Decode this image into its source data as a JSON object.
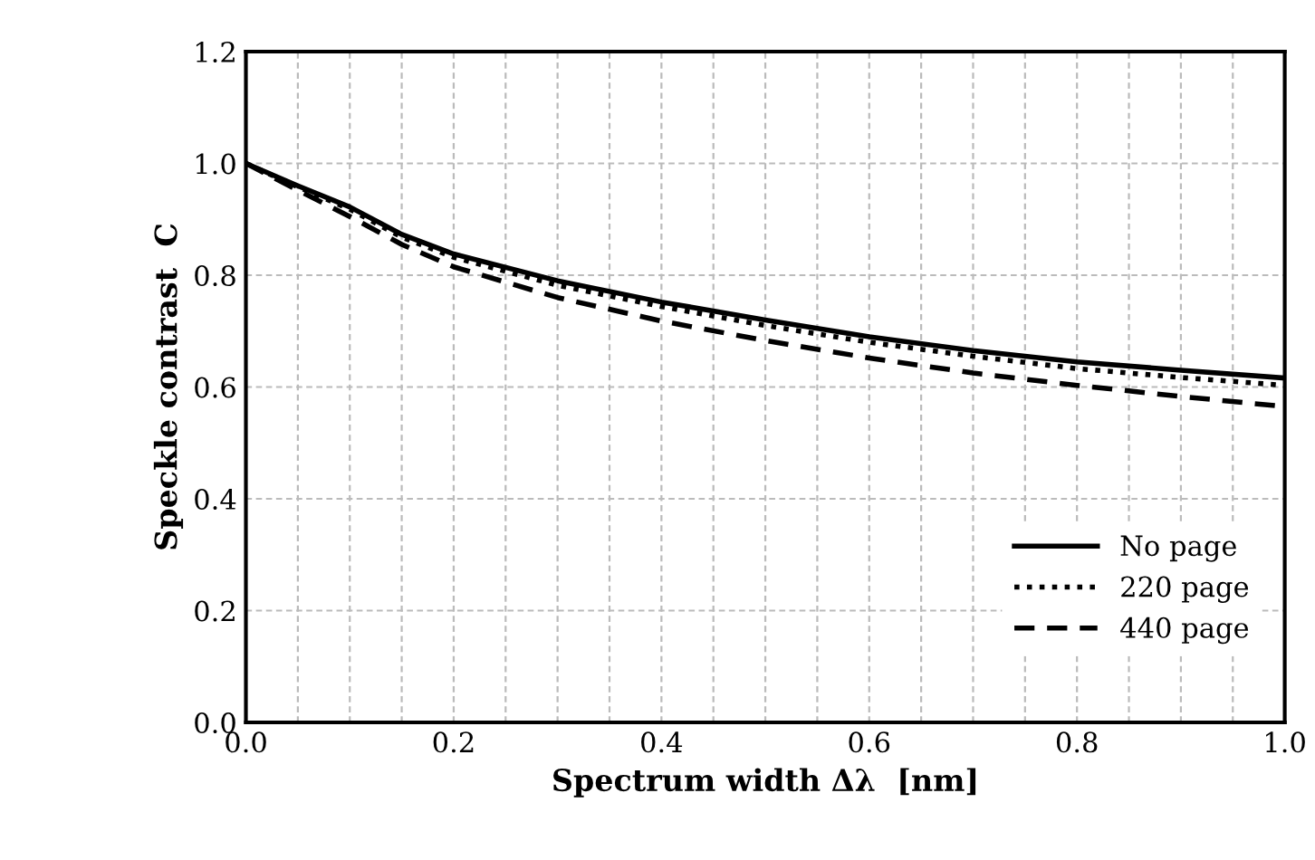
{
  "chart_data": {
    "type": "line",
    "xlabel": "Spectrum width Δλ  [nm]",
    "ylabel": "Speckle contrast  C",
    "x": [
      0,
      0.05,
      0.1,
      0.15,
      0.2,
      0.3,
      0.4,
      0.5,
      0.6,
      0.7,
      0.8,
      0.9,
      1.0
    ],
    "series": [
      {
        "name": "No page",
        "color": "#000000",
        "line_style": "solid",
        "values": [
          1.0,
          0.96,
          0.922,
          0.873,
          0.838,
          0.79,
          0.752,
          0.72,
          0.69,
          0.665,
          0.645,
          0.63,
          0.616
        ]
      },
      {
        "name": "220 page",
        "color": "#000000",
        "line_style": "dotted",
        "values": [
          1.0,
          0.958,
          0.918,
          0.868,
          0.832,
          0.782,
          0.744,
          0.71,
          0.68,
          0.655,
          0.633,
          0.617,
          0.603
        ]
      },
      {
        "name": "440 page",
        "color": "#000000",
        "line_style": "dashed",
        "values": [
          1.0,
          0.952,
          0.905,
          0.855,
          0.815,
          0.76,
          0.718,
          0.683,
          0.652,
          0.625,
          0.603,
          0.583,
          0.565
        ]
      }
    ],
    "xlim": [
      0,
      1.0
    ],
    "ylim": [
      0,
      1.2
    ],
    "xticks": [
      {
        "value": 0,
        "label": "0.0"
      },
      {
        "value": 0.05,
        "label": null
      },
      {
        "value": 0.1,
        "label": null
      },
      {
        "value": 0.15,
        "label": null
      },
      {
        "value": 0.2,
        "label": "0.2"
      },
      {
        "value": 0.25,
        "label": null
      },
      {
        "value": 0.3,
        "label": null
      },
      {
        "value": 0.35,
        "label": null
      },
      {
        "value": 0.4,
        "label": "0.4"
      },
      {
        "value": 0.45,
        "label": null
      },
      {
        "value": 0.5,
        "label": null
      },
      {
        "value": 0.55,
        "label": null
      },
      {
        "value": 0.6,
        "label": "0.6"
      },
      {
        "value": 0.65,
        "label": null
      },
      {
        "value": 0.7,
        "label": null
      },
      {
        "value": 0.75,
        "label": null
      },
      {
        "value": 0.8,
        "label": "0.8"
      },
      {
        "value": 0.85,
        "label": null
      },
      {
        "value": 0.9,
        "label": null
      },
      {
        "value": 0.95,
        "label": null
      },
      {
        "value": 1.0,
        "label": "1.0"
      }
    ],
    "yticks": [
      {
        "value": 0,
        "label": "0.0"
      },
      {
        "value": 0.2,
        "label": "0.2"
      },
      {
        "value": 0.4,
        "label": "0.4"
      },
      {
        "value": 0.6,
        "label": "0.6"
      },
      {
        "value": 0.8,
        "label": "0.8"
      },
      {
        "value": 1.0,
        "label": "1.0"
      },
      {
        "value": 1.2,
        "label": "1.2"
      }
    ],
    "grid": true,
    "legend": "bottom right",
    "marker": "none"
  }
}
